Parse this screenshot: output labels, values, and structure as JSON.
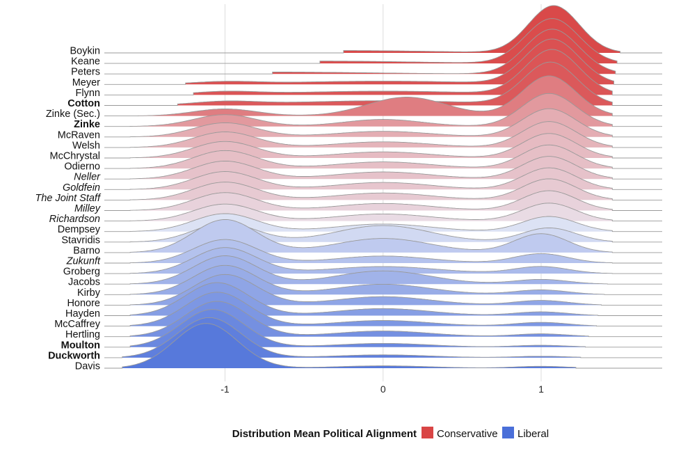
{
  "chart_data": {
    "type": "ridgeline",
    "xlim": [
      -1.8,
      1.8
    ],
    "x_ticks": [
      {
        "value": -1,
        "label": "-1"
      },
      {
        "value": 0,
        "label": "0"
      },
      {
        "value": 1,
        "label": "1"
      }
    ],
    "grid": true,
    "legend": {
      "title": "Distribution Mean Political Alignment",
      "placement": "bottom",
      "entries": [
        {
          "label": "Conservative",
          "color": "#d94545"
        },
        {
          "label": "Liberal",
          "color": "#4a6fd9"
        }
      ]
    },
    "colors": {
      "conservative": "#d94545",
      "neutral": "#ebedf7",
      "liberal": "#4a6fd9",
      "outline": "#999999",
      "grid": "#dddddd"
    },
    "series": [
      {
        "name": "Boykin",
        "style": "normal",
        "alignment": 0.97,
        "extent": [
          -0.25,
          1.5
        ],
        "components": [
          {
            "mu": -0.25,
            "sd": 0.6,
            "w": 0.05
          },
          {
            "mu": 1.08,
            "sd": 0.16,
            "w": 1.0
          }
        ]
      },
      {
        "name": "Keane",
        "style": "normal",
        "alignment": 0.95,
        "extent": [
          -0.4,
          1.48
        ],
        "components": [
          {
            "mu": -0.4,
            "sd": 0.6,
            "w": 0.05
          },
          {
            "mu": 1.07,
            "sd": 0.17,
            "w": 0.95
          }
        ]
      },
      {
        "name": "Peters",
        "style": "normal",
        "alignment": 0.93,
        "extent": [
          -0.7,
          1.47
        ],
        "components": [
          {
            "mu": -0.7,
            "sd": 0.6,
            "w": 0.04
          },
          {
            "mu": 1.07,
            "sd": 0.17,
            "w": 0.95
          }
        ]
      },
      {
        "name": "Meyer",
        "style": "normal",
        "alignment": 0.91,
        "extent": [
          -1.25,
          1.46
        ],
        "components": [
          {
            "mu": -1.0,
            "sd": 0.2,
            "w": 0.05
          },
          {
            "mu": 0.0,
            "sd": 0.6,
            "w": 0.07
          },
          {
            "mu": 1.07,
            "sd": 0.17,
            "w": 0.95
          }
        ]
      },
      {
        "name": "Flynn",
        "style": "normal",
        "alignment": 0.88,
        "extent": [
          -1.2,
          1.45
        ],
        "components": [
          {
            "mu": -1.0,
            "sd": 0.2,
            "w": 0.06
          },
          {
            "mu": 0.0,
            "sd": 0.6,
            "w": 0.08
          },
          {
            "mu": 1.07,
            "sd": 0.17,
            "w": 0.95
          }
        ]
      },
      {
        "name": "Cotton",
        "style": "bold",
        "alignment": 0.85,
        "extent": [
          -1.3,
          1.45
        ],
        "components": [
          {
            "mu": -1.0,
            "sd": 0.2,
            "w": 0.07
          },
          {
            "mu": 0.0,
            "sd": 0.6,
            "w": 0.1
          },
          {
            "mu": 1.06,
            "sd": 0.17,
            "w": 0.9
          }
        ]
      },
      {
        "name": "Zinke (Sec.)",
        "style": "normal",
        "alignment": 0.6,
        "extent": [
          -1.55,
          1.45
        ],
        "components": [
          {
            "mu": -1.0,
            "sd": 0.2,
            "w": 0.15
          },
          {
            "mu": 0.15,
            "sd": 0.25,
            "w": 0.4
          },
          {
            "mu": 1.05,
            "sd": 0.17,
            "w": 0.85
          }
        ]
      },
      {
        "name": "Zinke",
        "style": "bold",
        "alignment": 0.42,
        "extent": [
          -1.6,
          1.45
        ],
        "components": [
          {
            "mu": -1.0,
            "sd": 0.2,
            "w": 0.25
          },
          {
            "mu": 0.0,
            "sd": 0.25,
            "w": 0.15
          },
          {
            "mu": 1.05,
            "sd": 0.17,
            "w": 0.7
          }
        ]
      },
      {
        "name": "McRaven",
        "style": "normal",
        "alignment": 0.3,
        "extent": [
          -1.6,
          1.45
        ],
        "components": [
          {
            "mu": -1.0,
            "sd": 0.2,
            "w": 0.3
          },
          {
            "mu": 0.0,
            "sd": 0.3,
            "w": 0.12
          },
          {
            "mu": 1.05,
            "sd": 0.17,
            "w": 0.6
          }
        ]
      },
      {
        "name": "Welsh",
        "style": "normal",
        "alignment": 0.26,
        "extent": [
          -1.6,
          1.45
        ],
        "components": [
          {
            "mu": -1.0,
            "sd": 0.2,
            "w": 0.33
          },
          {
            "mu": 0.0,
            "sd": 0.3,
            "w": 0.12
          },
          {
            "mu": 1.05,
            "sd": 0.17,
            "w": 0.55
          }
        ]
      },
      {
        "name": "McChrystal",
        "style": "normal",
        "alignment": 0.22,
        "extent": [
          -1.6,
          1.45
        ],
        "components": [
          {
            "mu": -1.0,
            "sd": 0.2,
            "w": 0.35
          },
          {
            "mu": 0.0,
            "sd": 0.3,
            "w": 0.13
          },
          {
            "mu": 1.05,
            "sd": 0.17,
            "w": 0.52
          }
        ]
      },
      {
        "name": "Odierno",
        "style": "normal",
        "alignment": 0.2,
        "extent": [
          -1.6,
          1.45
        ],
        "components": [
          {
            "mu": -1.0,
            "sd": 0.2,
            "w": 0.38
          },
          {
            "mu": 0.0,
            "sd": 0.3,
            "w": 0.14
          },
          {
            "mu": 1.05,
            "sd": 0.17,
            "w": 0.5
          }
        ]
      },
      {
        "name": "Neller",
        "style": "italic",
        "alignment": 0.18,
        "extent": [
          -1.6,
          1.45
        ],
        "components": [
          {
            "mu": -1.0,
            "sd": 0.2,
            "w": 0.38
          },
          {
            "mu": 0.0,
            "sd": 0.3,
            "w": 0.15
          },
          {
            "mu": 1.05,
            "sd": 0.17,
            "w": 0.48
          }
        ]
      },
      {
        "name": "Goldfein",
        "style": "italic",
        "alignment": 0.16,
        "extent": [
          -1.6,
          1.45
        ],
        "components": [
          {
            "mu": -1.0,
            "sd": 0.2,
            "w": 0.38
          },
          {
            "mu": 0.0,
            "sd": 0.3,
            "w": 0.15
          },
          {
            "mu": 1.05,
            "sd": 0.17,
            "w": 0.46
          }
        ]
      },
      {
        "name": "The Joint Staff",
        "style": "italic",
        "alignment": 0.14,
        "extent": [
          -1.6,
          1.45
        ],
        "components": [
          {
            "mu": -1.0,
            "sd": 0.2,
            "w": 0.38
          },
          {
            "mu": 0.0,
            "sd": 0.3,
            "w": 0.15
          },
          {
            "mu": 1.05,
            "sd": 0.17,
            "w": 0.45
          }
        ]
      },
      {
        "name": "Milley",
        "style": "italic",
        "alignment": 0.1,
        "extent": [
          -1.6,
          1.45
        ],
        "components": [
          {
            "mu": -1.0,
            "sd": 0.2,
            "w": 0.38
          },
          {
            "mu": 0.0,
            "sd": 0.3,
            "w": 0.15
          },
          {
            "mu": 1.05,
            "sd": 0.17,
            "w": 0.42
          }
        ]
      },
      {
        "name": "Richardson",
        "style": "italic",
        "alignment": 0.06,
        "extent": [
          -1.6,
          1.45
        ],
        "components": [
          {
            "mu": -1.0,
            "sd": 0.2,
            "w": 0.36
          },
          {
            "mu": 0.0,
            "sd": 0.3,
            "w": 0.15
          },
          {
            "mu": 1.05,
            "sd": 0.17,
            "w": 0.38
          }
        ]
      },
      {
        "name": "Dempsey",
        "style": "normal",
        "alignment": -0.05,
        "extent": [
          -1.6,
          1.45
        ],
        "components": [
          {
            "mu": -1.0,
            "sd": 0.2,
            "w": 0.38
          },
          {
            "mu": 0.0,
            "sd": 0.3,
            "w": 0.16
          },
          {
            "mu": 1.05,
            "sd": 0.17,
            "w": 0.32
          }
        ]
      },
      {
        "name": "Stavridis",
        "style": "normal",
        "alignment": -0.1,
        "extent": [
          -1.6,
          1.45
        ],
        "components": [
          {
            "mu": -1.0,
            "sd": 0.2,
            "w": 0.4
          },
          {
            "mu": 0.0,
            "sd": 0.3,
            "w": 0.35
          },
          {
            "mu": 1.05,
            "sd": 0.17,
            "w": 0.3
          }
        ]
      },
      {
        "name": "Barno",
        "style": "normal",
        "alignment": -0.2,
        "extent": [
          -1.6,
          1.45
        ],
        "components": [
          {
            "mu": -1.0,
            "sd": 0.2,
            "w": 0.7
          },
          {
            "mu": 0.0,
            "sd": 0.3,
            "w": 0.3
          },
          {
            "mu": 1.0,
            "sd": 0.17,
            "w": 0.4
          }
        ]
      },
      {
        "name": "Zukunft",
        "style": "italic",
        "alignment": -0.26,
        "extent": [
          -1.6,
          1.45
        ],
        "components": [
          {
            "mu": -1.0,
            "sd": 0.2,
            "w": 0.5
          },
          {
            "mu": 0.0,
            "sd": 0.3,
            "w": 0.15
          },
          {
            "mu": 1.0,
            "sd": 0.17,
            "w": 0.2
          }
        ]
      },
      {
        "name": "Groberg",
        "style": "normal",
        "alignment": -0.32,
        "extent": [
          -1.6,
          1.45
        ],
        "components": [
          {
            "mu": -1.0,
            "sd": 0.2,
            "w": 0.55
          },
          {
            "mu": 0.0,
            "sd": 0.35,
            "w": 0.15
          },
          {
            "mu": 1.0,
            "sd": 0.17,
            "w": 0.15
          }
        ]
      },
      {
        "name": "Jacobs",
        "style": "normal",
        "alignment": -0.38,
        "extent": [
          -1.6,
          1.42
        ],
        "components": [
          {
            "mu": -1.0,
            "sd": 0.2,
            "w": 0.6
          },
          {
            "mu": 0.0,
            "sd": 0.3,
            "w": 0.28
          },
          {
            "mu": 1.0,
            "sd": 0.17,
            "w": 0.1
          }
        ]
      },
      {
        "name": "Kirby",
        "style": "normal",
        "alignment": -0.44,
        "extent": [
          -1.6,
          1.4
        ],
        "components": [
          {
            "mu": -1.0,
            "sd": 0.2,
            "w": 0.62
          },
          {
            "mu": 0.0,
            "sd": 0.3,
            "w": 0.22
          },
          {
            "mu": 1.0,
            "sd": 0.17,
            "w": 0.1
          }
        ]
      },
      {
        "name": "Honore",
        "style": "normal",
        "alignment": -0.5,
        "extent": [
          -1.6,
          1.38
        ],
        "components": [
          {
            "mu": -1.0,
            "sd": 0.2,
            "w": 0.65
          },
          {
            "mu": 0.0,
            "sd": 0.3,
            "w": 0.18
          },
          {
            "mu": 1.0,
            "sd": 0.17,
            "w": 0.1
          }
        ]
      },
      {
        "name": "Hayden",
        "style": "normal",
        "alignment": -0.56,
        "extent": [
          -1.6,
          1.36
        ],
        "components": [
          {
            "mu": -1.05,
            "sd": 0.2,
            "w": 0.7
          },
          {
            "mu": 0.0,
            "sd": 0.3,
            "w": 0.15
          },
          {
            "mu": 1.0,
            "sd": 0.17,
            "w": 0.08
          }
        ]
      },
      {
        "name": "McCaffrey",
        "style": "normal",
        "alignment": -0.62,
        "extent": [
          -1.6,
          1.35
        ],
        "components": [
          {
            "mu": -1.05,
            "sd": 0.2,
            "w": 0.72
          },
          {
            "mu": 0.0,
            "sd": 0.3,
            "w": 0.12
          },
          {
            "mu": 1.0,
            "sd": 0.17,
            "w": 0.08
          }
        ]
      },
      {
        "name": "Hertling",
        "style": "normal",
        "alignment": -0.68,
        "extent": [
          -1.6,
          1.3
        ],
        "components": [
          {
            "mu": -1.05,
            "sd": 0.2,
            "w": 0.75
          },
          {
            "mu": 0.0,
            "sd": 0.3,
            "w": 0.12
          },
          {
            "mu": 1.0,
            "sd": 0.17,
            "w": 0.06
          }
        ]
      },
      {
        "name": "Moulton",
        "style": "bold",
        "alignment": -0.76,
        "extent": [
          -1.6,
          1.28
        ],
        "components": [
          {
            "mu": -1.08,
            "sd": 0.2,
            "w": 0.8
          },
          {
            "mu": 0.0,
            "sd": 0.3,
            "w": 0.08
          },
          {
            "mu": 1.0,
            "sd": 0.17,
            "w": 0.04
          }
        ]
      },
      {
        "name": "Duckworth",
        "style": "bold",
        "alignment": -0.84,
        "extent": [
          -1.65,
          1.25
        ],
        "components": [
          {
            "mu": -1.1,
            "sd": 0.2,
            "w": 0.85
          },
          {
            "mu": 0.0,
            "sd": 0.3,
            "w": 0.06
          },
          {
            "mu": 1.0,
            "sd": 0.17,
            "w": 0.03
          }
        ]
      },
      {
        "name": "Davis",
        "style": "normal",
        "alignment": -0.9,
        "extent": [
          -1.65,
          1.22
        ],
        "components": [
          {
            "mu": -1.12,
            "sd": 0.2,
            "w": 0.95
          },
          {
            "mu": 0.0,
            "sd": 0.3,
            "w": 0.05
          },
          {
            "mu": 1.0,
            "sd": 0.17,
            "w": 0.04
          }
        ]
      }
    ]
  }
}
